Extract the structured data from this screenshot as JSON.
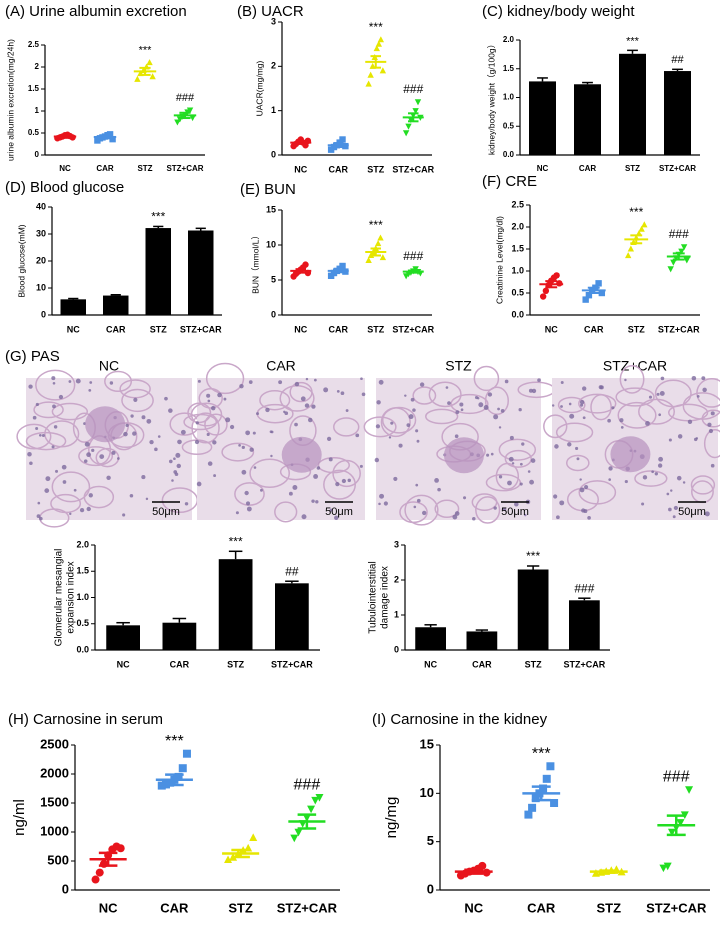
{
  "chart_data": [
    {
      "type": "dot",
      "title": "(A) Urine albumin excretion",
      "ylabel": "urine albumin excretion(mg/24h)",
      "categories": [
        "NC",
        "CAR",
        "STZ",
        "STZ+CAR"
      ],
      "values": [
        0.42,
        0.41,
        1.9,
        0.9
      ],
      "errors": [
        0.03,
        0.03,
        0.08,
        0.06
      ],
      "points": [
        [
          0.38,
          0.4,
          0.42,
          0.45,
          0.46,
          0.43,
          0.4
        ],
        [
          0.33,
          0.38,
          0.4,
          0.42,
          0.45,
          0.47,
          0.36
        ],
        [
          1.72,
          1.85,
          1.92,
          2.0,
          2.1,
          1.78
        ],
        [
          0.75,
          0.82,
          0.88,
          0.92,
          0.98,
          1.02,
          0.85
        ]
      ],
      "annotations": [
        null,
        null,
        "***",
        "###"
      ],
      "colors": [
        "#e8141c",
        "#4a90e2",
        "#e6e600",
        "#22dd22"
      ],
      "markers": [
        "circle",
        "square",
        "triangle-up",
        "triangle-down"
      ],
      "ylim": [
        0,
        2.5
      ],
      "yticks": [
        0,
        0.5,
        1,
        1.5,
        2,
        2.5
      ]
    },
    {
      "type": "dot",
      "title": "(B) UACR",
      "ylabel": "UACR(mg/mg)",
      "categories": [
        "NC",
        "CAR",
        "STZ",
        "STZ+CAR"
      ],
      "values": [
        0.28,
        0.22,
        2.1,
        0.85
      ],
      "errors": [
        0.03,
        0.04,
        0.13,
        0.09
      ],
      "points": [
        [
          0.2,
          0.25,
          0.3,
          0.35,
          0.28,
          0.22,
          0.32
        ],
        [
          0.12,
          0.18,
          0.22,
          0.28,
          0.35,
          0.2
        ],
        [
          1.6,
          1.8,
          2.0,
          2.2,
          2.4,
          2.5,
          2.6,
          1.9
        ],
        [
          0.5,
          0.65,
          0.8,
          0.9,
          1.0,
          1.2,
          0.85
        ]
      ],
      "annotations": [
        null,
        null,
        "***",
        "###"
      ],
      "colors": [
        "#e8141c",
        "#4a90e2",
        "#e6e600",
        "#22dd22"
      ],
      "markers": [
        "circle",
        "square",
        "triangle-up",
        "triangle-down"
      ],
      "ylim": [
        0,
        3
      ],
      "yticks": [
        0,
        1,
        2,
        3
      ]
    },
    {
      "type": "bar",
      "title": "(C) kidney/body weight",
      "ylabel": "kidney/body weight（g/100g）",
      "categories": [
        "NC",
        "CAR",
        "STZ",
        "STZ+CAR"
      ],
      "values": [
        1.28,
        1.23,
        1.76,
        1.46
      ],
      "errors": [
        0.06,
        0.03,
        0.06,
        0.03
      ],
      "annotations": [
        null,
        null,
        "***",
        "##"
      ],
      "color": "#000000",
      "ylim": [
        0,
        2.0
      ],
      "yticks": [
        {
          "value": 0,
          "label": "0.0"
        },
        {
          "value": 0.5,
          "label": "0.5"
        },
        {
          "value": 1,
          "label": "1.0"
        },
        {
          "value": 1.5,
          "label": "1.5"
        },
        {
          "value": 2,
          "label": "2.0"
        }
      ]
    },
    {
      "type": "bar",
      "title": "(D) Blood glucose",
      "ylabel": "Blood glucose(mM)",
      "categories": [
        "NC",
        "CAR",
        "STZ",
        "STZ+CAR"
      ],
      "values": [
        5.8,
        7.2,
        32.2,
        31.3
      ],
      "errors": [
        0.3,
        0.3,
        0.6,
        0.8
      ],
      "annotations": [
        null,
        null,
        "***",
        null
      ],
      "color": "#000000",
      "ylim": [
        0,
        40
      ],
      "yticks": [
        0,
        10,
        20,
        30,
        40
      ]
    },
    {
      "type": "dot",
      "title": "(E) BUN",
      "ylabel": "BUN（mmol/L）",
      "categories": [
        "NC",
        "CAR",
        "STZ",
        "STZ+CAR"
      ],
      "values": [
        6.3,
        6.3,
        9.0,
        6.2
      ],
      "errors": [
        0.25,
        0.2,
        0.5,
        0.15
      ],
      "points": [
        [
          5.5,
          5.9,
          6.2,
          6.5,
          6.8,
          7.2,
          6.0
        ],
        [
          5.6,
          6.0,
          6.3,
          6.6,
          7.0,
          6.2
        ],
        [
          7.8,
          8.5,
          9.0,
          9.5,
          10.2,
          11.0,
          8.2
        ],
        [
          5.6,
          5.9,
          6.1,
          6.3,
          6.6,
          6.2,
          6.0
        ]
      ],
      "annotations": [
        null,
        null,
        "***",
        "###"
      ],
      "colors": [
        "#e8141c",
        "#4a90e2",
        "#e6e600",
        "#22dd22"
      ],
      "markers": [
        "circle",
        "square",
        "triangle-up",
        "triangle-down"
      ],
      "ylim": [
        0,
        15
      ],
      "yticks": [
        0,
        5,
        10,
        15
      ]
    },
    {
      "type": "dot",
      "title": "(F) CRE",
      "ylabel": "Creatinine Level(mg/dl)",
      "categories": [
        "NC",
        "CAR",
        "STZ",
        "STZ+CAR"
      ],
      "values": [
        0.7,
        0.56,
        1.72,
        1.33
      ],
      "errors": [
        0.07,
        0.06,
        0.09,
        0.07
      ],
      "points": [
        [
          0.42,
          0.55,
          0.68,
          0.78,
          0.85,
          0.9,
          0.72
        ],
        [
          0.35,
          0.45,
          0.55,
          0.62,
          0.72,
          0.5
        ],
        [
          1.35,
          1.5,
          1.65,
          1.75,
          1.85,
          1.95,
          2.05
        ],
        [
          1.05,
          1.2,
          1.3,
          1.38,
          1.45,
          1.55,
          1.25
        ]
      ],
      "annotations": [
        null,
        null,
        "***",
        "###"
      ],
      "colors": [
        "#e8141c",
        "#4a90e2",
        "#e6e600",
        "#22dd22"
      ],
      "markers": [
        "circle",
        "square",
        "triangle-up",
        "triangle-down"
      ],
      "ylim": [
        0,
        2.5
      ],
      "yticks": [
        {
          "value": 0,
          "label": "0.0"
        },
        {
          "value": 0.5,
          "label": "0.5"
        },
        {
          "value": 1,
          "label": "1.0"
        },
        {
          "value": 1.5,
          "label": "1.5"
        },
        {
          "value": 2,
          "label": "2.0"
        },
        {
          "value": 2.5,
          "label": "2.5"
        }
      ]
    },
    {
      "type": "bar",
      "ylabel": [
        "Glomerular mesangial",
        "expansion index"
      ],
      "categories": [
        "NC",
        "CAR",
        "STZ",
        "STZ+CAR"
      ],
      "values": [
        0.47,
        0.52,
        1.73,
        1.27
      ],
      "errors": [
        0.05,
        0.08,
        0.15,
        0.04
      ],
      "annotations": [
        null,
        null,
        "***",
        "##"
      ],
      "color": "#000000",
      "ylim": [
        0,
        2.0
      ],
      "yticks": [
        {
          "value": 0,
          "label": "0.0"
        },
        {
          "value": 0.5,
          "label": "0.5"
        },
        {
          "value": 1,
          "label": "1.0"
        },
        {
          "value": 1.5,
          "label": "1.5"
        },
        {
          "value": 2,
          "label": "2.0"
        }
      ]
    },
    {
      "type": "bar",
      "ylabel": [
        "Tubulointerstitial",
        "damage index"
      ],
      "categories": [
        "NC",
        "CAR",
        "STZ",
        "STZ+CAR"
      ],
      "values": [
        0.65,
        0.53,
        2.3,
        1.42
      ],
      "errors": [
        0.07,
        0.04,
        0.1,
        0.06
      ],
      "annotations": [
        null,
        null,
        "***",
        "###"
      ],
      "color": "#000000",
      "ylim": [
        0,
        3
      ],
      "yticks": [
        0,
        1,
        2,
        3
      ]
    },
    {
      "type": "dot",
      "title": "(H)  Carnosine in serum",
      "ylabel": "ng/ml",
      "categories": [
        "NC",
        "CAR",
        "STZ",
        "STZ+CAR"
      ],
      "values": [
        530,
        1900,
        630,
        1180
      ],
      "errors": [
        110,
        90,
        60,
        120
      ],
      "points": [
        [
          180,
          300,
          450,
          600,
          700,
          750,
          720
        ],
        [
          1800,
          1820,
          1850,
          1900,
          1950,
          2100,
          2350
        ],
        [
          520,
          560,
          620,
          680,
          720,
          900
        ],
        [
          900,
          1000,
          1150,
          1250,
          1400,
          1550,
          1600
        ]
      ],
      "annotations": [
        null,
        "***",
        null,
        "###"
      ],
      "colors": [
        "#e8141c",
        "#4a90e2",
        "#e6e600",
        "#22dd22"
      ],
      "markers": [
        "circle",
        "square",
        "triangle-up",
        "triangle-down"
      ],
      "ylim": [
        0,
        2500
      ],
      "yticks": [
        0,
        500,
        1000,
        1500,
        2000,
        2500
      ]
    },
    {
      "type": "dot",
      "title": "(I)  Carnosine in the kidney",
      "ylabel": "ng/mg",
      "categories": [
        "NC",
        "CAR",
        "STZ",
        "STZ+CAR"
      ],
      "values": [
        1.9,
        10.0,
        1.9,
        6.7
      ],
      "errors": [
        0.2,
        0.7,
        0.1,
        1.0
      ],
      "points": [
        [
          1.5,
          1.7,
          1.9,
          2.0,
          2.2,
          2.5,
          1.8
        ],
        [
          7.8,
          8.5,
          9.5,
          10,
          10.5,
          11.5,
          12.8,
          9.0
        ],
        [
          1.7,
          1.8,
          1.9,
          2.0,
          2.1,
          1.85
        ],
        [
          2.3,
          2.5,
          6.0,
          6.5,
          7.0,
          7.8,
          10.4
        ]
      ],
      "annotations": [
        null,
        "***",
        null,
        "###"
      ],
      "colors": [
        "#e8141c",
        "#4a90e2",
        "#e6e600",
        "#22dd22"
      ],
      "markers": [
        "circle",
        "square",
        "triangle-up",
        "triangle-down"
      ],
      "ylim": [
        0,
        15
      ],
      "yticks": [
        0,
        5,
        10,
        15
      ]
    }
  ],
  "pas": {
    "label": "(G) PAS",
    "panels": [
      "NC",
      "CAR",
      "STZ",
      "STZ+CAR"
    ],
    "scale_bar": "50μm"
  }
}
